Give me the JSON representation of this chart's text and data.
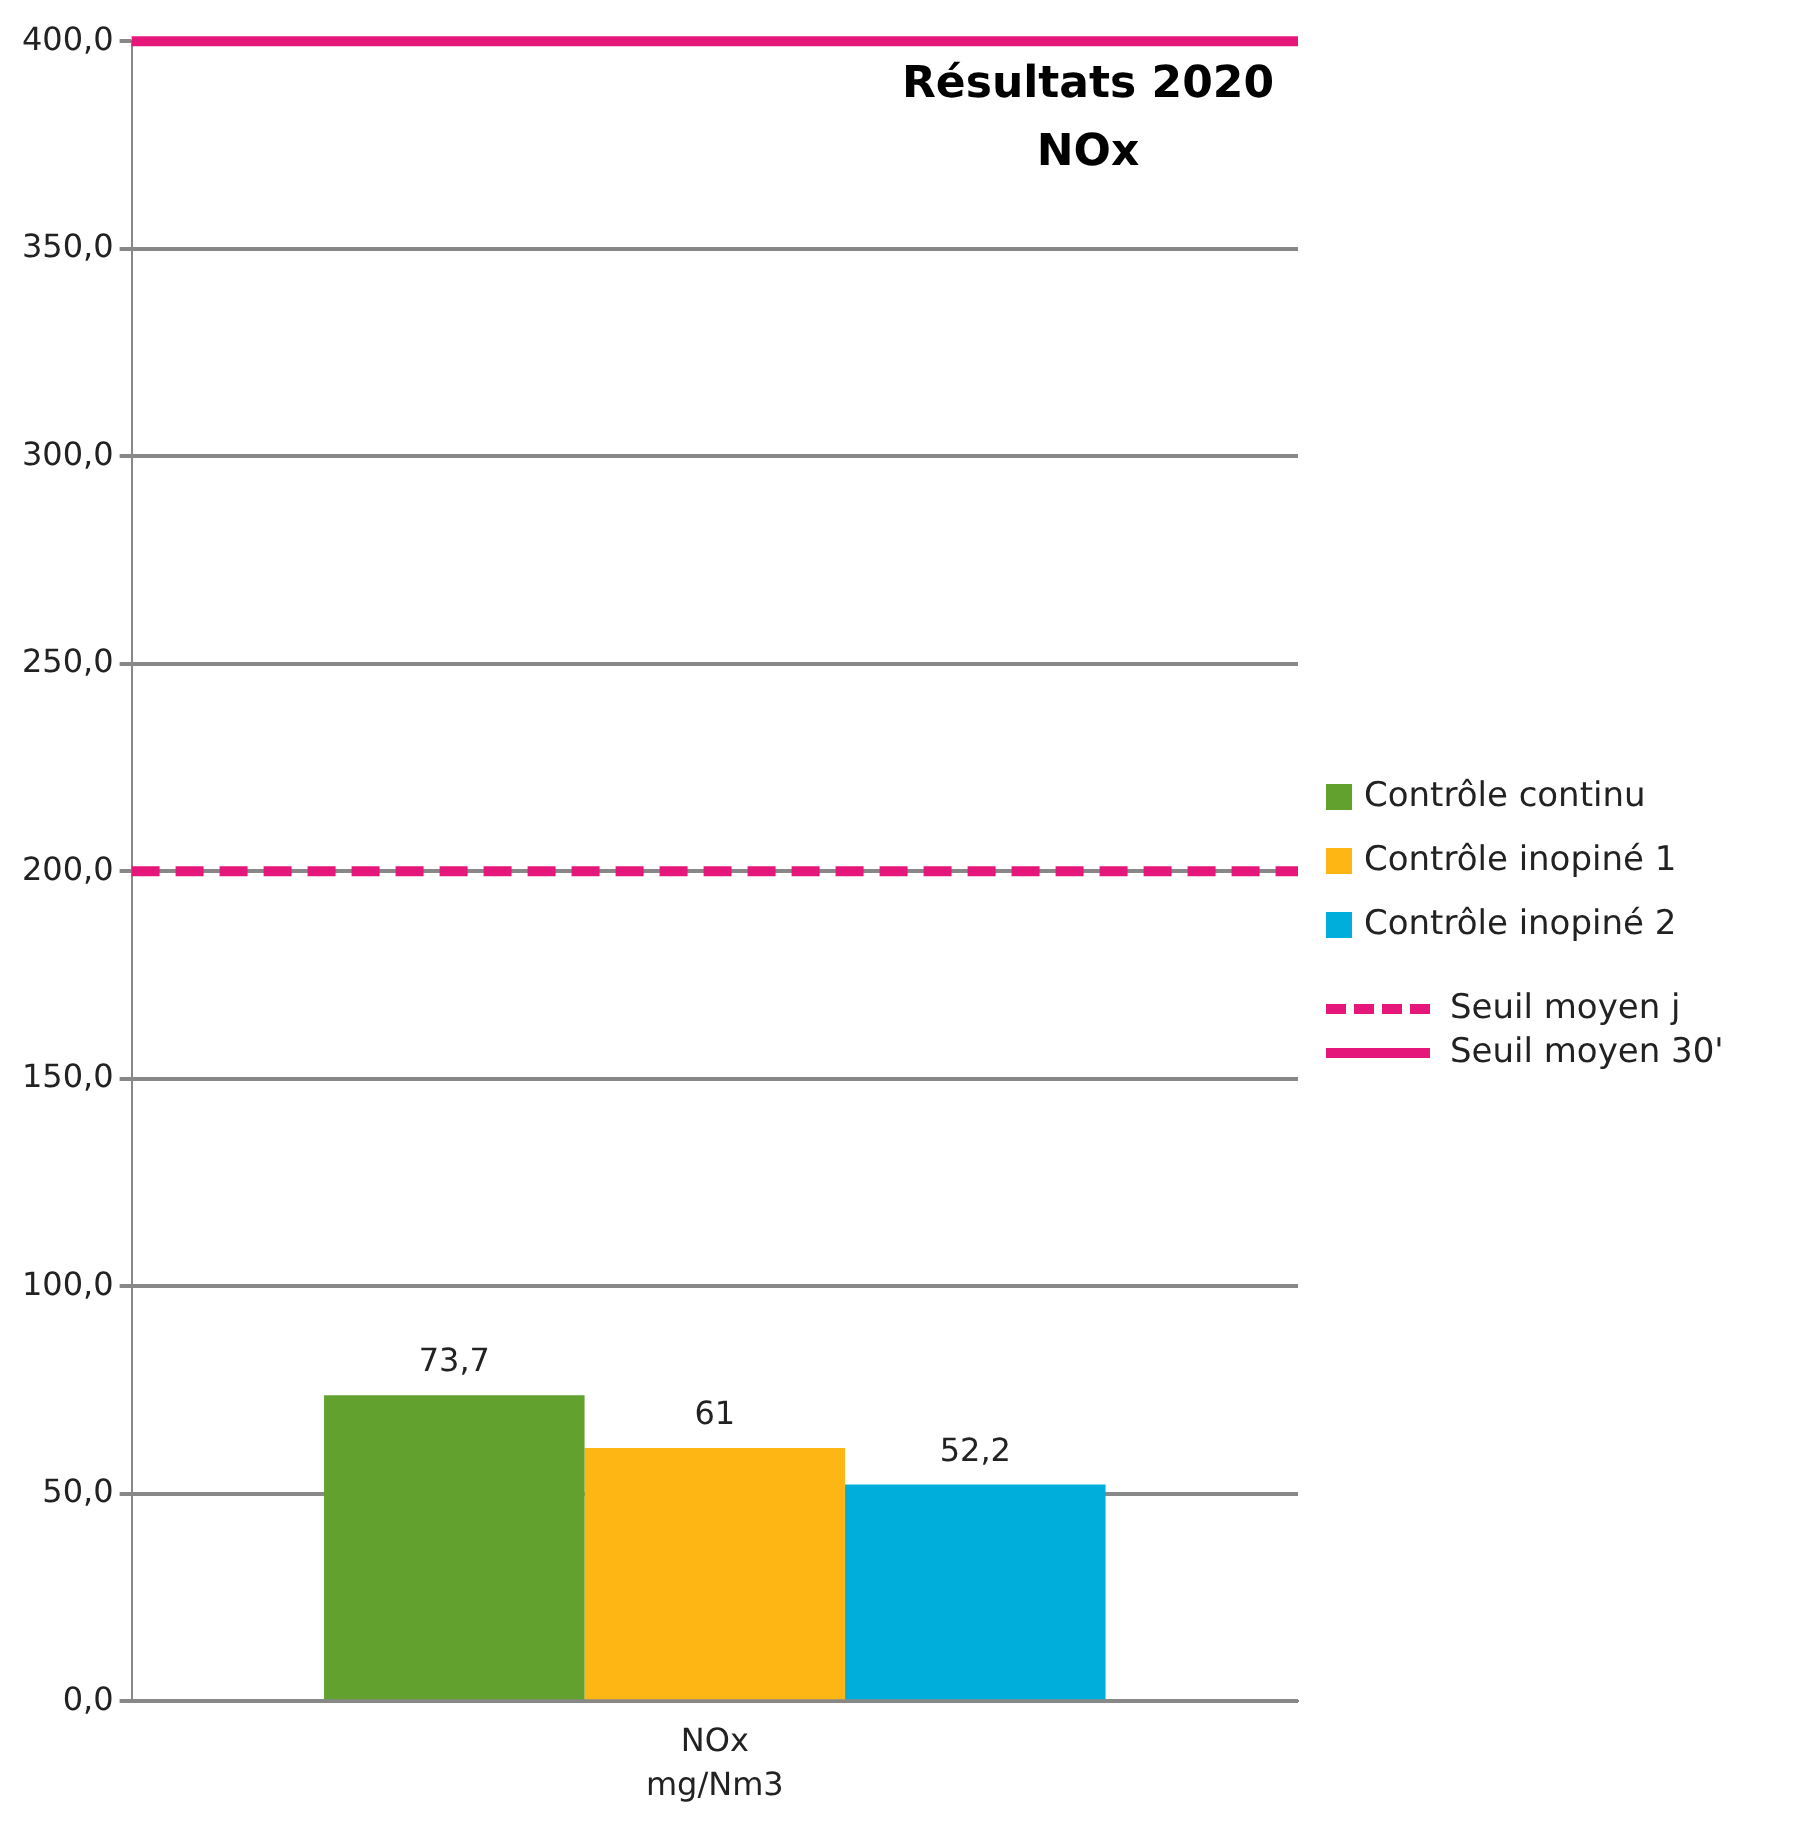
{
  "chart_data": {
    "type": "bar",
    "title": "Résultats 2020",
    "subtitle": "NOx",
    "xlabel": "mg/Nm3",
    "categories": [
      "NOx"
    ],
    "series": [
      {
        "name": "Contrôle continu",
        "color": "#62a12e",
        "values": [
          73.7
        ],
        "value_labels": [
          "73,7"
        ]
      },
      {
        "name": "Contrôle inopiné 1",
        "color": "#fdb614",
        "values": [
          61
        ],
        "value_labels": [
          "61"
        ]
      },
      {
        "name": "Contrôle inopiné 2",
        "color": "#00aedb",
        "values": [
          52.2
        ],
        "value_labels": [
          "52,2"
        ]
      }
    ],
    "ref_lines": [
      {
        "axis": "y",
        "value": 200,
        "label": "Seuil moyen j",
        "color": "#e6177a",
        "line_style": "dashed"
      },
      {
        "axis": "y",
        "value": 400,
        "label": "Seuil moyen 30'",
        "color": "#e6177a",
        "line_style": "solid"
      }
    ],
    "ylim": [
      0,
      400
    ],
    "yticks": [
      {
        "value": 0,
        "label": "0,0"
      },
      {
        "value": 50,
        "label": "50,0"
      },
      {
        "value": 100,
        "label": "100,0"
      },
      {
        "value": 150,
        "label": "150,0"
      },
      {
        "value": 200,
        "label": "200,0"
      },
      {
        "value": 250,
        "label": "250,0"
      },
      {
        "value": 300,
        "label": "300,0"
      },
      {
        "value": 350,
        "label": "350,0"
      },
      {
        "value": 400,
        "label": "400,0"
      }
    ],
    "grid": "y",
    "legend": "right"
  }
}
